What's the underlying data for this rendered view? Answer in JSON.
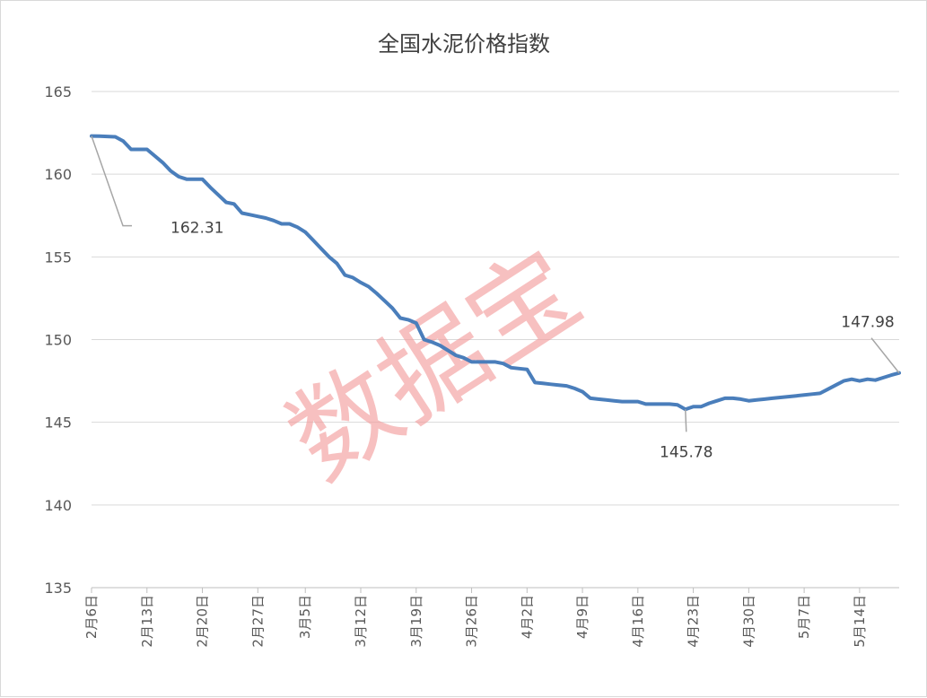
{
  "chart_data": {
    "type": "line",
    "title": "全国水泥价格指数",
    "xlabel": "",
    "ylabel": "",
    "ylim": [
      135,
      165
    ],
    "yticks": [
      135,
      140,
      145,
      150,
      155,
      160,
      165
    ],
    "x_tick_labels": [
      "2月6日",
      "2月13日",
      "2月20日",
      "2月27日",
      "3月5日",
      "3月12日",
      "3月19日",
      "3月26日",
      "4月2日",
      "4月9日",
      "4月16日",
      "4月23日",
      "4月30日",
      "5月7日",
      "5月14日"
    ],
    "grid": true,
    "legend": "none",
    "series": [
      {
        "color": "#4a7ebb",
        "points": [
          [
            "2月6日",
            162.31
          ],
          [
            "2月7日",
            162.3
          ],
          [
            "2月8日",
            162.28
          ],
          [
            "2月9日",
            162.26
          ],
          [
            "2月10日",
            162.0
          ],
          [
            "2月11日",
            161.5
          ],
          [
            "2月12日",
            161.5
          ],
          [
            "2月13日",
            161.5
          ],
          [
            "2月14日",
            161.1
          ],
          [
            "2月15日",
            160.7
          ],
          [
            "2月16日",
            160.2
          ],
          [
            "2月17日",
            159.85
          ],
          [
            "2月18日",
            159.7
          ],
          [
            "2月19日",
            159.7
          ],
          [
            "2月20日",
            159.7
          ],
          [
            "2月21日",
            159.2
          ],
          [
            "2月22日",
            158.75
          ],
          [
            "2月23日",
            158.3
          ],
          [
            "2月24日",
            158.2
          ],
          [
            "2月25日",
            157.65
          ],
          [
            "2月26日",
            157.55
          ],
          [
            "2月27日",
            157.45
          ],
          [
            "2月28日",
            157.35
          ],
          [
            "3月1日",
            157.2
          ],
          [
            "3月2日",
            157.0
          ],
          [
            "3月3日",
            157.0
          ],
          [
            "3月4日",
            156.8
          ],
          [
            "3月5日",
            156.5
          ],
          [
            "3月6日",
            156.0
          ],
          [
            "3月7日",
            155.5
          ],
          [
            "3月8日",
            155.0
          ],
          [
            "3月9日",
            154.6
          ],
          [
            "3月10日",
            153.9
          ],
          [
            "3月11日",
            153.75
          ],
          [
            "3月12日",
            153.45
          ],
          [
            "3月13日",
            153.2
          ],
          [
            "3月14日",
            152.8
          ],
          [
            "3月15日",
            152.35
          ],
          [
            "3月16日",
            151.9
          ],
          [
            "3月17日",
            151.3
          ],
          [
            "3月18日",
            151.2
          ],
          [
            "3月19日",
            151.0
          ],
          [
            "3月20日",
            150.0
          ],
          [
            "3月21日",
            149.85
          ],
          [
            "3月22日",
            149.65
          ],
          [
            "3月23日",
            149.35
          ],
          [
            "3月24日",
            149.05
          ],
          [
            "3月25日",
            148.9
          ],
          [
            "3月26日",
            148.65
          ],
          [
            "3月27日",
            148.65
          ],
          [
            "3月28日",
            148.65
          ],
          [
            "3月29日",
            148.65
          ],
          [
            "3月30日",
            148.55
          ],
          [
            "3月31日",
            148.3
          ],
          [
            "4月1日",
            148.25
          ],
          [
            "4月2日",
            148.2
          ],
          [
            "4月3日",
            147.4
          ],
          [
            "4月4日",
            147.35
          ],
          [
            "4月5日",
            147.3
          ],
          [
            "4月6日",
            147.25
          ],
          [
            "4月7日",
            147.2
          ],
          [
            "4月8日",
            147.05
          ],
          [
            "4月9日",
            146.85
          ],
          [
            "4月10日",
            146.45
          ],
          [
            "4月11日",
            146.4
          ],
          [
            "4月12日",
            146.35
          ],
          [
            "4月13日",
            146.3
          ],
          [
            "4月14日",
            146.25
          ],
          [
            "4月15日",
            146.25
          ],
          [
            "4月16日",
            146.25
          ],
          [
            "4月17日",
            146.1
          ],
          [
            "4月18日",
            146.1
          ],
          [
            "4月19日",
            146.1
          ],
          [
            "4月20日",
            146.1
          ],
          [
            "4月21日",
            146.05
          ],
          [
            "4月22日",
            145.78
          ],
          [
            "4月23日",
            145.95
          ],
          [
            "4月24日",
            145.95
          ],
          [
            "4月25日",
            146.15
          ],
          [
            "4月26日",
            146.3
          ],
          [
            "4月27日",
            146.45
          ],
          [
            "4月28日",
            146.45
          ],
          [
            "4月29日",
            146.4
          ],
          [
            "4月30日",
            146.3
          ],
          [
            "5月1日",
            146.35
          ],
          [
            "5月2日",
            146.4
          ],
          [
            "5月3日",
            146.45
          ],
          [
            "5月4日",
            146.5
          ],
          [
            "5月5日",
            146.55
          ],
          [
            "5月6日",
            146.6
          ],
          [
            "5月7日",
            146.65
          ],
          [
            "5月8日",
            146.7
          ],
          [
            "5月9日",
            146.75
          ],
          [
            "5月10日",
            147.0
          ],
          [
            "5月11日",
            147.25
          ],
          [
            "5月12日",
            147.5
          ],
          [
            "5月13日",
            147.6
          ],
          [
            "5月14日",
            147.5
          ],
          [
            "5月15日",
            147.6
          ],
          [
            "5月16日",
            147.55
          ],
          [
            "5月17日",
            147.7
          ],
          [
            "5月18日",
            147.85
          ],
          [
            "5月19日",
            147.98
          ]
        ]
      }
    ],
    "annotations": [
      {
        "text": "162.31",
        "point_index": 0
      },
      {
        "text": "145.78",
        "point_index": 75
      },
      {
        "text": "147.98",
        "point_index": 102
      }
    ],
    "watermark": "数据宝"
  }
}
